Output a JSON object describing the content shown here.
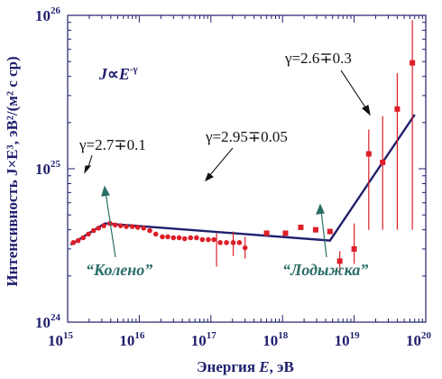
{
  "chart_data": {
    "type": "scatter",
    "xscale": "log",
    "yscale": "log",
    "xlim": [
      1000000000000000.0,
      1e+20
    ],
    "ylim": [
      1e+24,
      1e+26
    ],
    "xlabel_prefix": "Энергия ",
    "xlabel_var": "E",
    "xlabel_suffix": ", эВ",
    "ylabel": "Интенсивность J×E³, эВ²/(м² с ср)",
    "x_ticks": [
      {
        "base": "10",
        "exp": "15",
        "value": 1000000000000000.0
      },
      {
        "base": "10",
        "exp": "16",
        "value": 1e+16
      },
      {
        "base": "10",
        "exp": "17",
        "value": 1e+17
      },
      {
        "base": "10",
        "exp": "18",
        "value": 1e+18
      },
      {
        "base": "10",
        "exp": "19",
        "value": 1e+19
      },
      {
        "base": "10",
        "exp": "20",
        "value": 1e+20
      }
    ],
    "y_ticks": [
      {
        "base": "10",
        "exp": "24",
        "value": 1e+24
      },
      {
        "base": "10",
        "exp": "25",
        "value": 1e+25
      },
      {
        "base": "10",
        "exp": "26",
        "value": 1e+26
      }
    ],
    "formula": {
      "j": "J",
      "prop": "∝",
      "e": "E",
      "exp": "-γ"
    },
    "series": [
      {
        "marker": "circle",
        "color": "#dd1e28",
        "points": [
          [
            1200000000000000.0,
            3.3e+24
          ],
          [
            1400000000000000.0,
            3.4e+24
          ],
          [
            1650000000000000.0,
            3.55e+24
          ],
          [
            1950000000000000.0,
            3.75e+24
          ],
          [
            2300000000000000.0,
            3.95e+24
          ],
          [
            2700000000000000.0,
            4.1e+24
          ],
          [
            3200000000000000.0,
            4.25e+24
          ],
          [
            3900000000000000.0,
            4.4e+24
          ],
          [
            4600000000000000.0,
            4.3e+24
          ],
          [
            5500000000000000.0,
            4.25e+24
          ],
          [
            6600000000000000.0,
            4.2e+24
          ],
          [
            8000000000000000.0,
            4.2e+24
          ],
          [
            9500000000000000.0,
            4.15e+24
          ],
          [
            1.15e+16,
            4.1e+24
          ],
          [
            1.4e+16,
            3.95e+24
          ],
          [
            1.7e+16,
            3.75e+24
          ],
          [
            2.1e+16,
            3.6e+24
          ],
          [
            2.5e+16,
            3.6e+24
          ],
          [
            3e+16,
            3.55e+24
          ],
          [
            3.6e+16,
            3.55e+24
          ],
          [
            4.3e+16,
            3.5e+24
          ],
          [
            5.2e+16,
            3.55e+24
          ],
          [
            6.3e+16,
            3.55e+24
          ],
          [
            7.6e+16,
            3.45e+24
          ],
          [
            9.2e+16,
            3.45e+24
          ],
          [
            1.1e+17,
            3.45e+24
          ],
          [
            1.35e+17,
            3.3e+24
          ],
          [
            1.65e+17,
            3.3e+24
          ],
          [
            2.05e+17,
            3.3e+24
          ],
          [
            2.5e+17,
            3.3e+24
          ],
          [
            3e+17,
            3.05e+24
          ]
        ],
        "errors": [
          [
            1.2e+17,
            2.3e+24,
            3.8e+24
          ],
          [
            2.05e+17,
            2.7e+24,
            3.9e+24
          ],
          [
            3e+17,
            2.6e+24,
            3.6e+24
          ]
        ]
      },
      {
        "marker": "square",
        "color": "#dd1e28",
        "points": [
          [
            6e+17,
            3.8e+24
          ],
          [
            1.1e+18,
            3.8e+24
          ],
          [
            1.8e+18,
            4.15e+24
          ],
          [
            2.9e+18,
            4e+24
          ],
          [
            4.6e+18,
            3.9e+24
          ],
          [
            6.3e+18,
            2.5e+24
          ],
          [
            1e+19,
            3e+24
          ],
          [
            1.6e+19,
            1.25e+25
          ],
          [
            2.5e+19,
            1.1e+25
          ],
          [
            4e+19,
            2.45e+25
          ],
          [
            6.5e+19,
            4.9e+25
          ]
        ],
        "errors": [
          [
            6.3e+18,
            2.1e+24,
            2.9e+24
          ],
          [
            1e+19,
            2.4e+24,
            4.4e+24
          ],
          [
            1.6e+19,
            4e+24,
            1.8e+25
          ],
          [
            2.5e+19,
            4e+24,
            2.2e+25
          ],
          [
            4e+19,
            4e+24,
            4.2e+25
          ],
          [
            6.5e+19,
            4e+24,
            9.3e+25
          ]
        ]
      }
    ],
    "fit_line": {
      "color": "#1f1f6e",
      "points": [
        [
          1100000000000000.0,
          3.2e+24
        ],
        [
          3300000000000000.0,
          4.4e+24
        ],
        [
          4.6e+18,
          3.4e+24
        ],
        [
          7e+19,
          2.25e+25
        ]
      ]
    },
    "annotations": {
      "gamma_left": "γ=2.7∓0.1",
      "gamma_mid": "γ=2.95∓0.05",
      "gamma_right": "γ=2.6∓0.3",
      "knee": "“Колено”",
      "ankle": "“Лодыжка”"
    }
  }
}
